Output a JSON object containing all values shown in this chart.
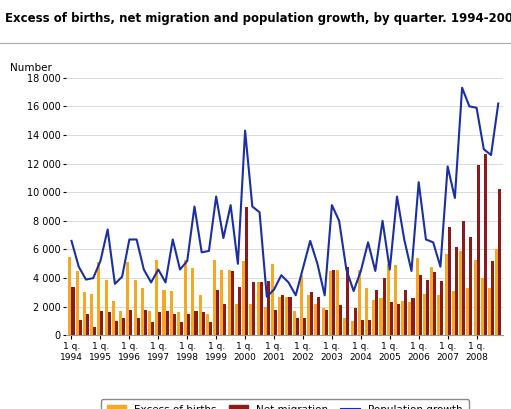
{
  "title": "Excess of births, net migration and population growth, by quarter. 1994-2008",
  "ylabel": "Number",
  "ylim": [
    0,
    18000
  ],
  "yticks": [
    0,
    2000,
    4000,
    6000,
    8000,
    10000,
    12000,
    14000,
    16000,
    18000
  ],
  "ytick_labels": [
    "0",
    "2 000",
    "4 000",
    "6 000",
    "8 000",
    "10 000",
    "12 000",
    "14 000",
    "16 000",
    "18 000"
  ],
  "bar_color_births": "#F4A824",
  "bar_color_migration": "#8B1A1A",
  "line_color": "#1A2FA0",
  "background_color": "#FFFFFF",
  "grid_color": "#CCCCCC",
  "excess_births": [
    5500,
    4500,
    3000,
    2900,
    5100,
    3900,
    2400,
    1700,
    5100,
    3900,
    3300,
    1700,
    5300,
    3200,
    3100,
    1600,
    5300,
    4700,
    2800,
    1500,
    5300,
    4600,
    4600,
    2200,
    5200,
    2200,
    3700,
    2000,
    5000,
    2700,
    2700,
    1700,
    4200,
    2800,
    2200,
    1900,
    4500,
    4600,
    1200,
    1000,
    4600,
    3300,
    2500,
    2600,
    5000,
    4900,
    2400,
    2300,
    5400,
    2900,
    4800,
    2800,
    5700,
    3100,
    5900,
    3300,
    5300,
    4000,
    3300,
    6000
  ],
  "net_migration": [
    3400,
    1100,
    1500,
    600,
    1700,
    1600,
    1000,
    1200,
    1800,
    1200,
    1800,
    900,
    1600,
    1700,
    1500,
    900,
    1500,
    1700,
    1600,
    900,
    3200,
    2200,
    4500,
    3400,
    9000,
    3700,
    3700,
    3800,
    1800,
    2800,
    2700,
    1200,
    1200,
    3000,
    2700,
    1800,
    4600,
    2100,
    4800,
    1900,
    1100,
    1100,
    3200,
    4000,
    2300,
    2200,
    3200,
    2600,
    4200,
    3900,
    4400,
    3800,
    7600,
    6200,
    8000,
    6900,
    11900,
    12700,
    5200,
    10200
  ],
  "population_growth": [
    6600,
    4800,
    3900,
    4000,
    5200,
    7400,
    3600,
    4100,
    6700,
    6700,
    4600,
    3700,
    4600,
    3700,
    6700,
    4600,
    5200,
    9000,
    5800,
    5900,
    9700,
    6800,
    9100,
    5000,
    14300,
    9000,
    8600,
    2700,
    3200,
    4200,
    3700,
    2800,
    4700,
    6600,
    5000,
    2800,
    9100,
    8000,
    4600,
    3100,
    4500,
    6500,
    4500,
    8000,
    4600,
    9700,
    6700,
    4500,
    10700,
    6700,
    6500,
    4800,
    11800,
    9600,
    17300,
    16000,
    15900,
    13000,
    12600,
    16200
  ],
  "x_tick_years": [
    1994,
    1995,
    1996,
    1997,
    1998,
    1999,
    2000,
    2001,
    2002,
    2003,
    2004,
    2005,
    2006,
    2007,
    2008
  ],
  "legend_births": "Excess of births",
  "legend_migration": "Net migration",
  "legend_growth": "Population growth"
}
